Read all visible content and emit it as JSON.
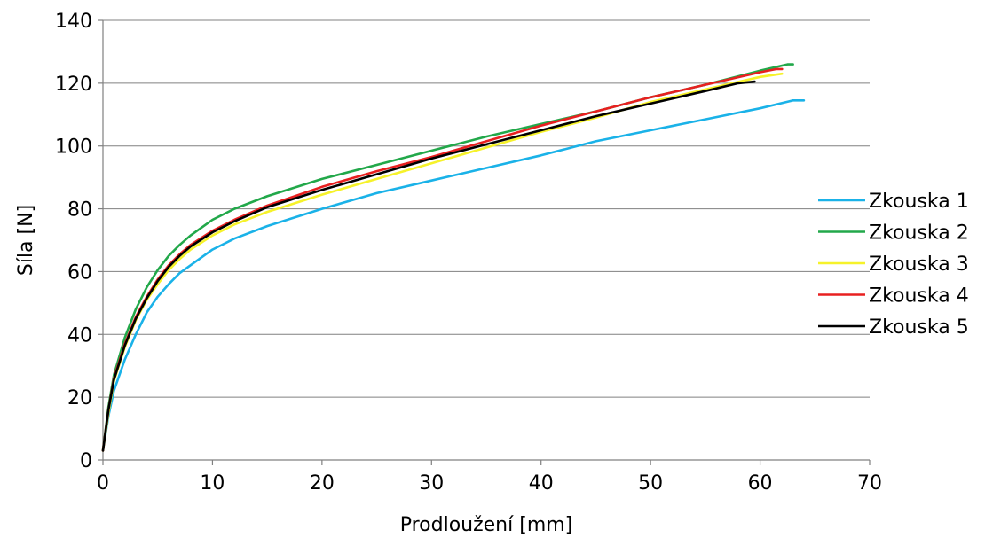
{
  "chart_data": {
    "type": "line",
    "title": "",
    "xlabel": "Prodloužení [mm]",
    "ylabel": "Síla [N]",
    "xlim": [
      0,
      70
    ],
    "ylim": [
      0,
      140
    ],
    "xticks": [
      0,
      10,
      20,
      30,
      40,
      50,
      60,
      70
    ],
    "yticks": [
      0,
      20,
      40,
      60,
      80,
      100,
      120,
      140
    ],
    "grid": "horizontal",
    "legend_position": "right",
    "series": [
      {
        "name": "Zkouska 1",
        "color": "#1ab2e8",
        "x": [
          0,
          0.5,
          1,
          2,
          3,
          4,
          5,
          6,
          7,
          8,
          10,
          12,
          15,
          20,
          25,
          30,
          35,
          40,
          45,
          50,
          55,
          60,
          63,
          64
        ],
        "y": [
          3,
          14,
          22,
          32,
          40,
          47,
          52,
          56,
          59.5,
          62,
          67,
          70.5,
          74.5,
          80,
          85,
          89,
          93,
          97,
          101.5,
          105,
          108.5,
          112,
          114.5,
          114.5
        ]
      },
      {
        "name": "Zkouska 2",
        "color": "#22a84a",
        "x": [
          0,
          0.5,
          1,
          2,
          3,
          4,
          5,
          6,
          7,
          8,
          10,
          12,
          15,
          20,
          25,
          30,
          35,
          40,
          45,
          50,
          55,
          60,
          62.5,
          63
        ],
        "y": [
          3,
          17,
          27,
          39,
          48,
          55,
          60.5,
          65,
          68.5,
          71.5,
          76.5,
          80,
          84,
          89.5,
          94,
          98.5,
          103,
          107,
          111,
          115.5,
          119.5,
          124,
          126,
          126
        ]
      },
      {
        "name": "Zkouska 3",
        "color": "#f6f22a",
        "x": [
          0,
          0.5,
          1,
          2,
          3,
          4,
          5,
          6,
          7,
          8,
          10,
          12,
          15,
          20,
          25,
          30,
          35,
          40,
          45,
          50,
          55,
          60,
          62
        ],
        "y": [
          3,
          15,
          25,
          36,
          44.5,
          51,
          56,
          60.5,
          64,
          67,
          71.5,
          75,
          79,
          84.5,
          89.5,
          94.5,
          99.5,
          104.5,
          109,
          114,
          118,
          122,
          123
        ]
      },
      {
        "name": "Zkouska 4",
        "color": "#e82020",
        "x": [
          0,
          0.5,
          1,
          2,
          3,
          4,
          5,
          6,
          7,
          8,
          10,
          12,
          15,
          20,
          25,
          30,
          35,
          40,
          45,
          50,
          55,
          60,
          61.5,
          62
        ],
        "y": [
          3,
          16,
          26,
          37,
          45.5,
          52,
          57.5,
          62,
          65.5,
          68.5,
          73,
          76.5,
          81,
          87,
          92,
          96.5,
          101.5,
          106.5,
          111,
          115.5,
          119.5,
          123.5,
          124.5,
          124.5
        ]
      },
      {
        "name": "Zkouska 5",
        "color": "#000000",
        "x": [
          0,
          0.5,
          1,
          2,
          3,
          4,
          5,
          6,
          7,
          8,
          10,
          12,
          15,
          20,
          25,
          30,
          35,
          40,
          45,
          50,
          55,
          58,
          59.5
        ],
        "y": [
          3,
          16,
          25.5,
          36.5,
          45,
          51.5,
          57,
          61.5,
          65,
          68,
          72.5,
          76,
          80.5,
          86,
          91,
          96,
          100.5,
          105,
          109.5,
          113.5,
          117.5,
          120,
          120.5
        ]
      }
    ]
  }
}
